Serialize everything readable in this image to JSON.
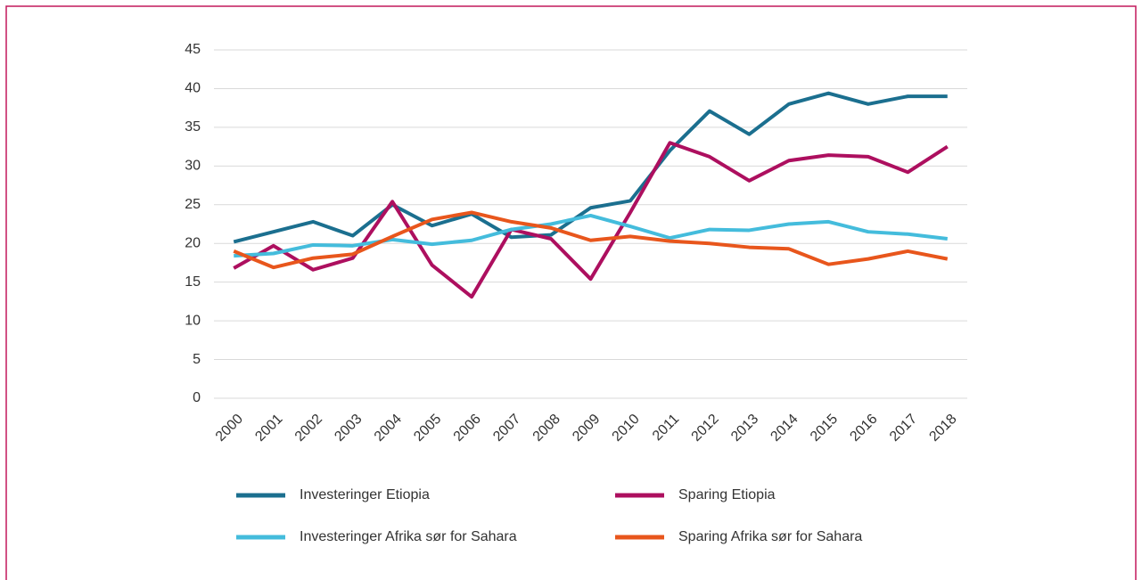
{
  "chart_data": {
    "type": "line",
    "categories": [
      "2000",
      "2001",
      "2002",
      "2003",
      "2004",
      "2005",
      "2006",
      "2007",
      "2008",
      "2009",
      "2010",
      "2011",
      "2012",
      "2013",
      "2014",
      "2015",
      "2016",
      "2017",
      "2018"
    ],
    "series": [
      {
        "name": "Investeringer Etiopia",
        "color": "#1b6f8f",
        "values": [
          20.2,
          21.5,
          22.8,
          21,
          25,
          22.3,
          23.8,
          20.8,
          21.1,
          24.6,
          25.5,
          32,
          37.1,
          34.1,
          38,
          39.4,
          38,
          39,
          39
        ]
      },
      {
        "name": "Sparing Etiopia",
        "color": "#ad0f5f",
        "values": [
          16.8,
          19.7,
          16.6,
          18.1,
          25.4,
          17.2,
          13.1,
          21.8,
          20.6,
          15.4,
          24,
          33,
          31.2,
          28.1,
          30.7,
          31.4,
          31.2,
          29.2,
          32.5
        ]
      },
      {
        "name": "Investeringer Afrika sør for Sahara",
        "color": "#44bcdc",
        "values": [
          18.4,
          18.7,
          19.8,
          19.7,
          20.5,
          19.9,
          20.4,
          21.8,
          22.5,
          23.6,
          22.2,
          20.7,
          21.8,
          21.7,
          22.5,
          22.8,
          21.5,
          21.2,
          20.6
        ]
      },
      {
        "name": "Sparing Afrika sør for Sahara",
        "color": "#e8561c",
        "values": [
          19,
          16.9,
          18.1,
          18.6,
          20.9,
          23.1,
          24,
          22.8,
          22,
          20.4,
          20.9,
          20.3,
          20,
          19.5,
          19.3,
          17.3,
          18,
          19,
          18
        ]
      }
    ],
    "ylim": [
      0,
      45
    ],
    "yticks": [
      0,
      5,
      10,
      15,
      20,
      25,
      30,
      35,
      40,
      45
    ],
    "grid": true
  }
}
